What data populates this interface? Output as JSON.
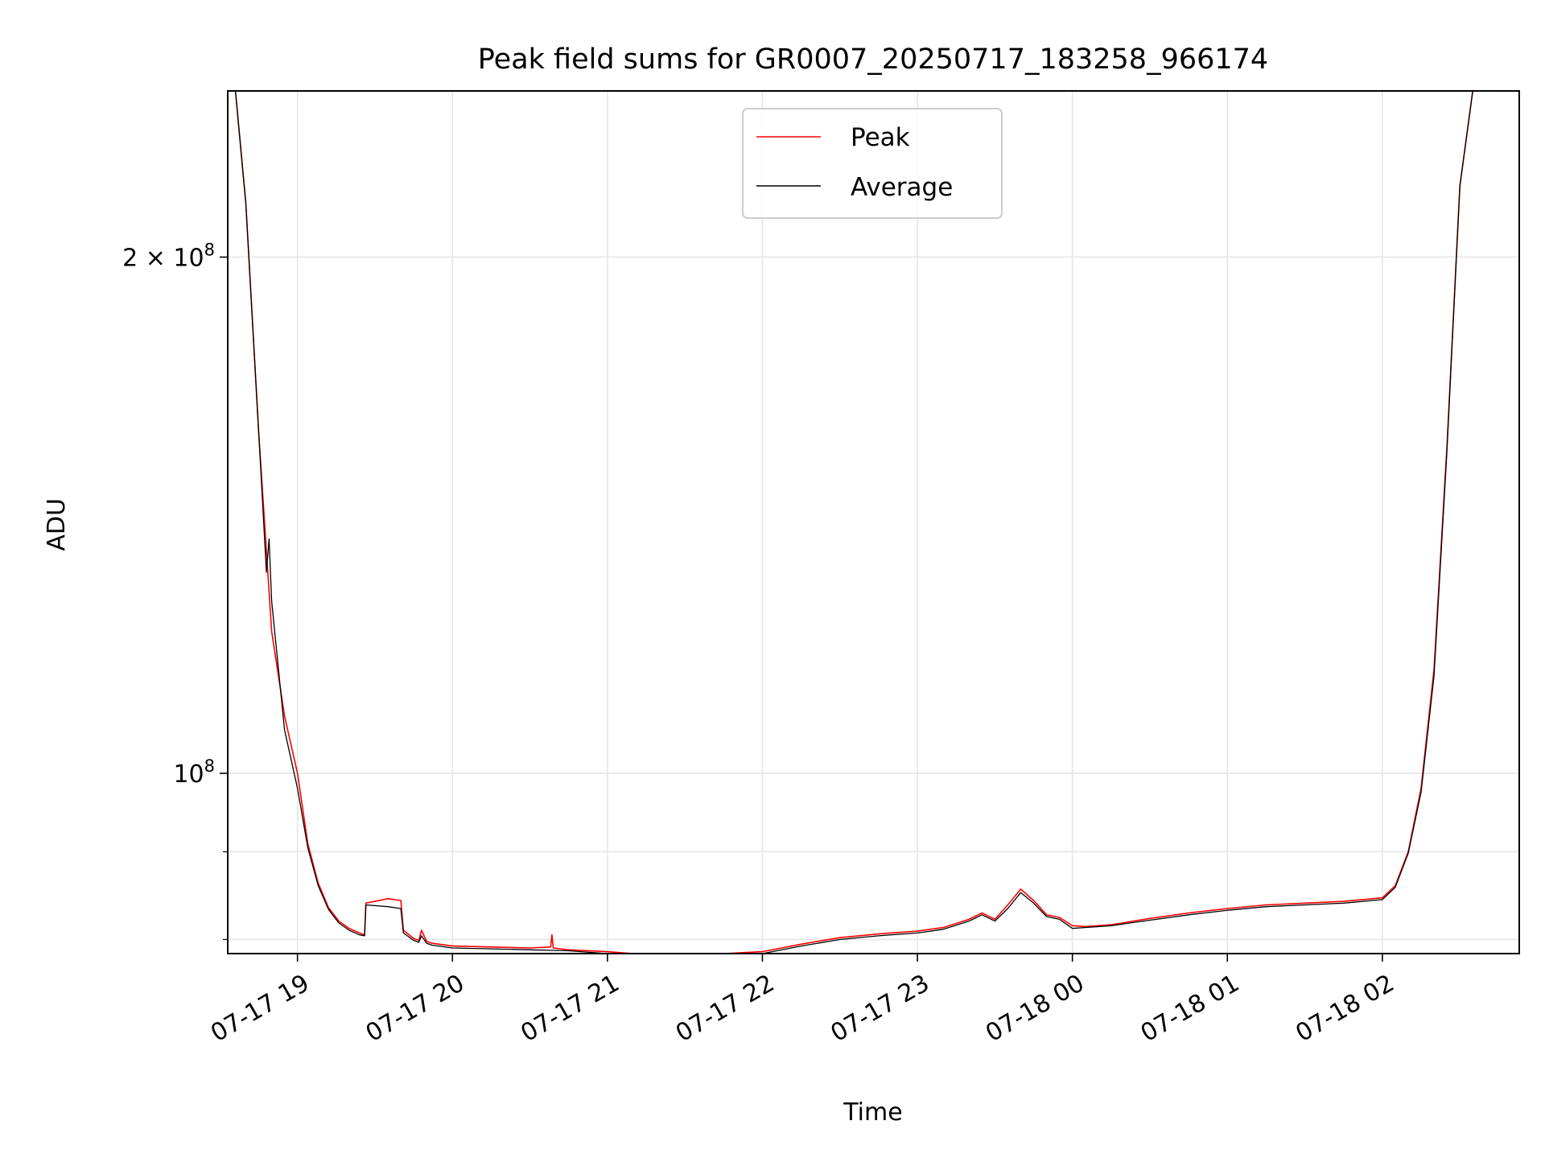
{
  "chart_data": {
    "type": "line",
    "title": "Peak field sums for GR0007_20250717_183258_966174",
    "xlabel": "Time",
    "ylabel": "ADU",
    "x_scale": "time",
    "y_scale": "log",
    "xlim": [
      "2025-07-17T18:33:00",
      "2025-07-18T02:53:00"
    ],
    "ylim": [
      78500000,
      250000000
    ],
    "grid": true,
    "legend_position": "top-center",
    "x_ticks": [
      {
        "value": "2025-07-17T19:00:00",
        "label": "07-17 19"
      },
      {
        "value": "2025-07-17T20:00:00",
        "label": "07-17 20"
      },
      {
        "value": "2025-07-17T21:00:00",
        "label": "07-17 21"
      },
      {
        "value": "2025-07-17T22:00:00",
        "label": "07-17 22"
      },
      {
        "value": "2025-07-17T23:00:00",
        "label": "07-17 23"
      },
      {
        "value": "2025-07-18T00:00:00",
        "label": "07-18 00"
      },
      {
        "value": "2025-07-18T01:00:00",
        "label": "07-18 01"
      },
      {
        "value": "2025-07-18T02:00:00",
        "label": "07-18 02"
      }
    ],
    "y_ticks_major": [
      {
        "value": 200000000,
        "label_base": "2 × 10",
        "label_exp": "8"
      },
      {
        "value": 100000000,
        "label_base": "10",
        "label_exp": "8"
      }
    ],
    "y_ticks_minor": [
      80000000,
      90000000
    ],
    "series": [
      {
        "name": "Peak",
        "color": "#ff0000",
        "x": [
          "2025-07-17T18:36:00",
          "2025-07-17T18:40:00",
          "2025-07-17T18:45:00",
          "2025-07-17T18:50:00",
          "2025-07-17T18:55:00",
          "2025-07-17T19:00:00",
          "2025-07-17T19:04:00",
          "2025-07-17T19:08:00",
          "2025-07-17T19:12:00",
          "2025-07-17T19:16:00",
          "2025-07-17T19:20:00",
          "2025-07-17T19:24:00",
          "2025-07-17T19:26:00",
          "2025-07-17T19:26:30",
          "2025-07-17T19:35:00",
          "2025-07-17T19:40:00",
          "2025-07-17T19:41:00",
          "2025-07-17T19:45:00",
          "2025-07-17T19:47:00",
          "2025-07-17T19:48:00",
          "2025-07-17T19:50:00",
          "2025-07-17T19:52:00",
          "2025-07-17T20:00:00",
          "2025-07-17T20:15:00",
          "2025-07-17T20:30:00",
          "2025-07-17T20:38:00",
          "2025-07-17T20:38:30",
          "2025-07-17T20:39:00",
          "2025-07-17T20:45:00",
          "2025-07-17T21:00:00",
          "2025-07-17T21:15:00",
          "2025-07-17T21:30:00",
          "2025-07-17T21:45:00",
          "2025-07-17T22:00:00",
          "2025-07-17T22:15:00",
          "2025-07-17T22:30:00",
          "2025-07-17T22:45:00",
          "2025-07-17T23:00:00",
          "2025-07-17T23:10:00",
          "2025-07-17T23:20:00",
          "2025-07-17T23:25:00",
          "2025-07-17T23:30:00",
          "2025-07-17T23:35:00",
          "2025-07-17T23:40:00",
          "2025-07-17T23:45:00",
          "2025-07-17T23:50:00",
          "2025-07-17T23:55:00",
          "2025-07-18T00:00:00",
          "2025-07-18T00:05:00",
          "2025-07-18T00:15:00",
          "2025-07-18T00:30:00",
          "2025-07-18T00:45:00",
          "2025-07-18T01:00:00",
          "2025-07-18T01:15:00",
          "2025-07-18T01:30:00",
          "2025-07-18T01:45:00",
          "2025-07-18T02:00:00",
          "2025-07-18T02:05:00",
          "2025-07-18T02:10:00",
          "2025-07-18T02:15:00",
          "2025-07-18T02:20:00",
          "2025-07-18T02:25:00",
          "2025-07-18T02:30:00",
          "2025-07-18T02:35:00"
        ],
        "values": [
          250000000,
          215000000,
          158000000,
          121000000,
          108000000,
          100000000,
          91000000,
          86300000,
          83500000,
          82000000,
          81200000,
          80700000,
          80500000,
          84000000,
          84500000,
          84300000,
          81000000,
          80100000,
          79900000,
          81000000,
          79800000,
          79600000,
          79300000,
          79200000,
          79100000,
          79200000,
          80500000,
          79100000,
          78900000,
          78700000,
          78400000,
          78300000,
          78500000,
          78700000,
          79500000,
          80200000,
          80600000,
          80900000,
          81300000,
          82200000,
          82900000,
          82200000,
          83800000,
          85600000,
          84300000,
          82700000,
          82400000,
          81500000,
          81400000,
          81600000,
          82300000,
          82900000,
          83400000,
          83800000,
          84000000,
          84200000,
          84600000,
          86000000,
          90000000,
          98000000,
          115000000,
          155000000,
          220000000,
          250000000
        ]
      },
      {
        "name": "Average",
        "color": "#000000",
        "x": [
          "2025-07-17T18:36:00",
          "2025-07-17T18:40:00",
          "2025-07-17T18:45:00",
          "2025-07-17T18:48:00",
          "2025-07-17T18:49:00",
          "2025-07-17T18:50:00",
          "2025-07-17T18:55:00",
          "2025-07-17T19:00:00",
          "2025-07-17T19:04:00",
          "2025-07-17T19:08:00",
          "2025-07-17T19:12:00",
          "2025-07-17T19:16:00",
          "2025-07-17T19:20:00",
          "2025-07-17T19:24:00",
          "2025-07-17T19:26:00",
          "2025-07-17T19:26:30",
          "2025-07-17T19:35:00",
          "2025-07-17T19:40:00",
          "2025-07-17T19:41:00",
          "2025-07-17T19:45:00",
          "2025-07-17T19:47:00",
          "2025-07-17T19:48:00",
          "2025-07-17T19:50:00",
          "2025-07-17T19:52:00",
          "2025-07-17T20:00:00",
          "2025-07-17T20:15:00",
          "2025-07-17T20:30:00",
          "2025-07-17T20:45:00",
          "2025-07-17T21:00:00",
          "2025-07-17T21:15:00",
          "2025-07-17T21:30:00",
          "2025-07-17T21:45:00",
          "2025-07-17T22:00:00",
          "2025-07-17T22:15:00",
          "2025-07-17T22:30:00",
          "2025-07-17T22:45:00",
          "2025-07-17T23:00:00",
          "2025-07-17T23:10:00",
          "2025-07-17T23:20:00",
          "2025-07-17T23:25:00",
          "2025-07-17T23:30:00",
          "2025-07-17T23:35:00",
          "2025-07-17T23:40:00",
          "2025-07-17T23:45:00",
          "2025-07-17T23:50:00",
          "2025-07-17T23:55:00",
          "2025-07-18T00:00:00",
          "2025-07-18T00:05:00",
          "2025-07-18T00:15:00",
          "2025-07-18T00:30:00",
          "2025-07-18T00:45:00",
          "2025-07-18T01:00:00",
          "2025-07-18T01:15:00",
          "2025-07-18T01:30:00",
          "2025-07-18T01:45:00",
          "2025-07-18T02:00:00",
          "2025-07-18T02:05:00",
          "2025-07-18T02:10:00",
          "2025-07-18T02:15:00",
          "2025-07-18T02:20:00",
          "2025-07-18T02:25:00",
          "2025-07-18T02:30:00",
          "2025-07-18T02:35:00"
        ],
        "values": [
          250000000,
          215000000,
          158000000,
          131000000,
          137000000,
          126000000,
          106000000,
          98000000,
          90500000,
          86000000,
          83300000,
          81800000,
          81000000,
          80500000,
          80400000,
          83800000,
          83600000,
          83400000,
          80700000,
          79900000,
          79700000,
          80400000,
          79600000,
          79400000,
          79100000,
          79000000,
          78900000,
          78800000,
          78500000,
          78200000,
          78100000,
          78300000,
          78500000,
          79300000,
          80000000,
          80400000,
          80700000,
          81100000,
          82000000,
          82700000,
          82000000,
          83400000,
          85200000,
          84000000,
          82500000,
          82200000,
          81200000,
          81300000,
          81500000,
          82100000,
          82700000,
          83200000,
          83600000,
          83800000,
          84000000,
          84400000,
          85800000,
          89800000,
          97500000,
          114000000,
          154000000,
          220000000,
          250000000
        ]
      }
    ]
  }
}
